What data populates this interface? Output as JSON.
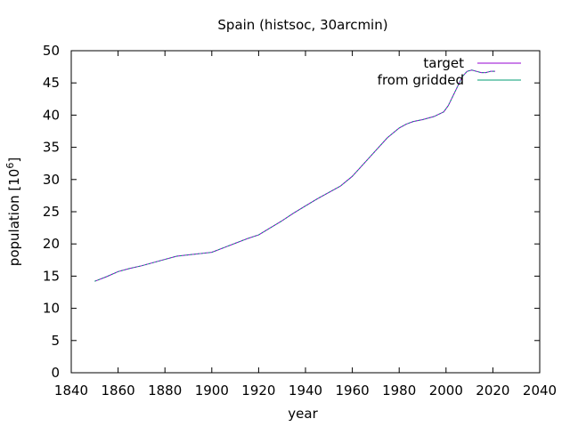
{
  "chart_data": {
    "type": "line",
    "title": "Spain (histsoc, 30arcmin)",
    "xlabel": "year",
    "ylabel": "population [10",
    "ylabel_superscript": "6",
    "ylabel_suffix": "]",
    "xlim": [
      1840,
      2040
    ],
    "ylim": [
      0,
      50
    ],
    "xticks": [
      "1840",
      "1860",
      "1880",
      "1900",
      "1920",
      "1940",
      "1960",
      "1980",
      "2000",
      "2020",
      "2040"
    ],
    "yticks": [
      "0",
      "5",
      "10",
      "15",
      "20",
      "25",
      "30",
      "35",
      "40",
      "45",
      "50"
    ],
    "grid": false,
    "legend_position": "top-right",
    "series": [
      {
        "name": "target",
        "color": "#9400d3",
        "x": [
          1850,
          1855,
          1860,
          1865,
          1870,
          1875,
          1880,
          1885,
          1890,
          1895,
          1900,
          1905,
          1910,
          1915,
          1920,
          1925,
          1930,
          1935,
          1940,
          1945,
          1950,
          1955,
          1960,
          1965,
          1970,
          1975,
          1980,
          1983,
          1986,
          1990,
          1995,
          1999,
          2001,
          2003,
          2005,
          2007,
          2009,
          2011,
          2013,
          2015,
          2017,
          2019,
          2021
        ],
        "y": [
          14.2,
          14.9,
          15.7,
          16.2,
          16.6,
          17.1,
          17.6,
          18.1,
          18.3,
          18.5,
          18.7,
          19.4,
          20.1,
          20.8,
          21.4,
          22.5,
          23.6,
          24.8,
          25.9,
          27.0,
          28.0,
          29.0,
          30.5,
          32.5,
          34.5,
          36.5,
          38.0,
          38.6,
          39.0,
          39.3,
          39.8,
          40.5,
          41.5,
          43.0,
          44.5,
          46.0,
          46.8,
          47.0,
          46.8,
          46.6,
          46.6,
          46.8,
          46.8
        ]
      },
      {
        "name": "from gridded",
        "color": "#009e73",
        "x": [
          1850,
          1855,
          1860,
          1865,
          1870,
          1875,
          1880,
          1885,
          1890,
          1895,
          1900,
          1905,
          1910,
          1915,
          1920,
          1925,
          1930,
          1935,
          1940,
          1945,
          1950,
          1955,
          1960,
          1965,
          1970,
          1975,
          1980,
          1983,
          1986,
          1990,
          1995,
          1999,
          2001,
          2003,
          2005,
          2007,
          2009,
          2011,
          2013,
          2015,
          2017,
          2019,
          2021
        ],
        "y": [
          14.2,
          14.9,
          15.7,
          16.2,
          16.6,
          17.1,
          17.6,
          18.1,
          18.3,
          18.5,
          18.7,
          19.4,
          20.1,
          20.8,
          21.4,
          22.5,
          23.6,
          24.8,
          25.9,
          27.0,
          28.0,
          29.0,
          30.5,
          32.5,
          34.5,
          36.5,
          38.0,
          38.6,
          39.0,
          39.3,
          39.8,
          40.5,
          41.5,
          43.0,
          44.5,
          46.0,
          46.8,
          47.0,
          46.8,
          46.6,
          46.6,
          46.8,
          46.8
        ]
      }
    ]
  }
}
